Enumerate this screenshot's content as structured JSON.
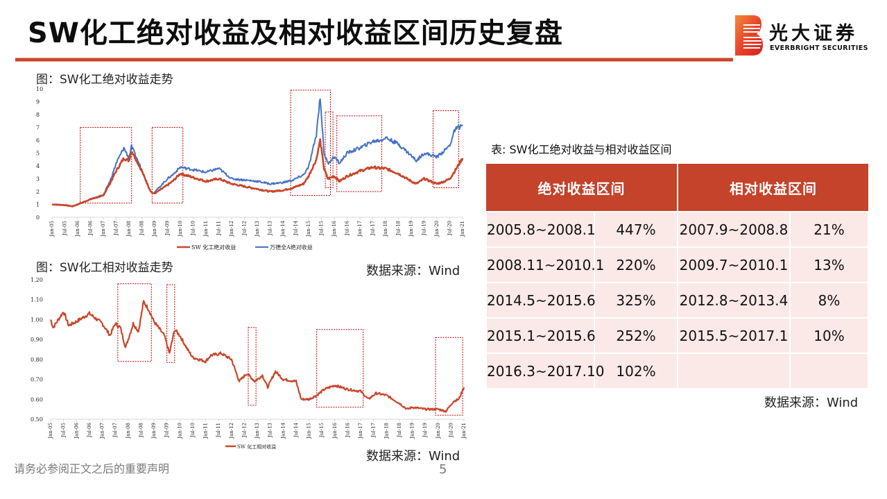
{
  "header": {
    "title": "SW化工绝对收益及相对收益区间历史复盘",
    "logo_cn": "光大证券",
    "logo_en": "EVERBRIGHT SECURITIES"
  },
  "colors": {
    "accent": "#c4432a",
    "sw_line": "#c9462a",
    "wind_line": "#4472c4",
    "box": "#c00000",
    "table_header_bg": "#c4432a",
    "table_cell_bg": "#fae9e6"
  },
  "figure1": {
    "caption": "图：SW化工绝对收益走势",
    "source": "数据来源：Wind"
  },
  "figure2": {
    "caption": "图：SW化工相对收益走势",
    "source": "数据来源：Wind"
  },
  "table": {
    "caption": "表: SW化工绝对收益与相对收益区间",
    "headers": [
      "绝对收益区间",
      "相对收益区间"
    ],
    "rows": [
      {
        "abs_range": "2005.8~2008.1",
        "abs_return": "447%",
        "rel_range": "2007.9~2008.8",
        "rel_return": "21%"
      },
      {
        "abs_range": "2008.11~2010.1",
        "abs_return": "220%",
        "rel_range": "2009.7~2010.1",
        "rel_return": "13%"
      },
      {
        "abs_range": "2014.5~2015.6",
        "abs_return": "325%",
        "rel_range": "2012.8~2013.4",
        "rel_return": "8%"
      },
      {
        "abs_range": "2015.1~2015.6",
        "abs_return": "252%",
        "rel_range": "2015.5~2017.1",
        "rel_return": "10%"
      },
      {
        "abs_range": "2016.3~2017.10",
        "abs_return": "102%",
        "rel_range": "",
        "rel_return": ""
      }
    ],
    "source": "数据来源：Wind"
  },
  "footer": {
    "disclaimer": "请务必参阅正文之后的重要声明",
    "page_number": "5"
  },
  "chart_data": [
    {
      "type": "line",
      "title": "SW化工绝对收益走势",
      "xlabel": "",
      "ylabel": "",
      "ylim": [
        0,
        10
      ],
      "yticks": [
        "0",
        "1",
        "2",
        "3",
        "4",
        "5",
        "6",
        "7",
        "8",
        "9",
        "10"
      ],
      "x_tick_labels": [
        "Jan-05",
        "Jul-05",
        "Jan-06",
        "Jul-06",
        "Jan-07",
        "Jul-07",
        "Jan-08",
        "Jul-08",
        "Jan-09",
        "Jul-09",
        "Jan-10",
        "Jul-10",
        "Jan-11",
        "Jul-11",
        "Jan-12",
        "Jul-12",
        "Jan-13",
        "Jul-13",
        "Jan-14",
        "Jul-14",
        "Jan-15",
        "Jul-15",
        "Jan-16",
        "Jul-16",
        "Jan-17",
        "Jul-17",
        "Jan-18",
        "Jul-18",
        "Jan-19",
        "Jul-19",
        "Jan-20",
        "Jul-20",
        "Jan-21"
      ],
      "legend_position": "bottom",
      "grid": false,
      "x": [
        2005.0,
        2005.5,
        2005.8,
        2006.0,
        2006.5,
        2007.0,
        2007.3,
        2007.5,
        2007.8,
        2008.0,
        2008.1,
        2008.5,
        2008.8,
        2008.9,
        2009.0,
        2009.5,
        2009.7,
        2010.0,
        2010.5,
        2011.0,
        2011.5,
        2012.0,
        2012.5,
        2013.0,
        2013.5,
        2014.0,
        2014.4,
        2014.8,
        2015.0,
        2015.3,
        2015.45,
        2015.6,
        2015.75,
        2016.0,
        2016.2,
        2016.5,
        2017.0,
        2017.5,
        2017.8,
        2018.0,
        2018.5,
        2019.0,
        2019.2,
        2019.5,
        2020.0,
        2020.3,
        2020.5,
        2020.7,
        2021.0
      ],
      "series": [
        {
          "name": "SW 化工绝对收益",
          "color": "#c9462a",
          "values": [
            1.0,
            0.95,
            0.85,
            1.0,
            1.4,
            1.7,
            2.8,
            3.6,
            4.6,
            4.4,
            5.2,
            3.6,
            2.2,
            1.9,
            1.85,
            2.5,
            2.8,
            3.4,
            3.1,
            2.8,
            3.0,
            2.6,
            2.4,
            2.2,
            2.0,
            2.1,
            2.3,
            2.6,
            3.2,
            4.5,
            6.0,
            3.8,
            3.0,
            3.2,
            2.8,
            3.2,
            3.6,
            3.9,
            3.8,
            3.8,
            3.4,
            2.8,
            2.6,
            3.0,
            2.6,
            2.8,
            3.0,
            3.6,
            4.6
          ]
        },
        {
          "name": "万德全A绝对收益",
          "color": "#4472c4",
          "values": [
            1.0,
            0.95,
            0.85,
            1.0,
            1.4,
            1.7,
            3.0,
            4.2,
            5.4,
            4.6,
            5.5,
            3.7,
            2.2,
            1.9,
            1.95,
            3.0,
            3.3,
            3.9,
            3.7,
            3.5,
            3.8,
            3.0,
            2.9,
            2.8,
            2.6,
            2.7,
            2.9,
            3.3,
            3.9,
            6.4,
            9.4,
            5.0,
            4.2,
            4.7,
            4.2,
            5.0,
            5.4,
            5.9,
            6.0,
            6.2,
            5.7,
            4.8,
            4.4,
            5.0,
            4.7,
            5.2,
            5.6,
            6.8,
            7.2
          ]
        }
      ],
      "highlight_boxes": [
        {
          "x_start": 2006.1,
          "x_end": 2008.1,
          "y_low": 1.1,
          "y_high": 7.0
        },
        {
          "x_start": 2008.9,
          "x_end": 2010.1,
          "y_low": 1.1,
          "y_high": 7.0
        },
        {
          "x_start": 2014.3,
          "x_end": 2015.85,
          "y_low": 1.7,
          "y_high": 9.9
        },
        {
          "x_start": 2015.65,
          "x_end": 2015.95,
          "y_low": 2.3,
          "y_high": 8.2
        },
        {
          "x_start": 2016.1,
          "x_end": 2017.85,
          "y_low": 2.0,
          "y_high": 7.9
        },
        {
          "x_start": 2019.85,
          "x_end": 2020.85,
          "y_low": 2.3,
          "y_high": 8.3
        }
      ]
    },
    {
      "type": "line",
      "title": "SW化工相对收益走势",
      "xlabel": "",
      "ylabel": "",
      "ylim": [
        0.5,
        1.2
      ],
      "yticks": [
        "0.50",
        "0.60",
        "0.70",
        "0.80",
        "0.90",
        "1.00",
        "1.10",
        "1.20"
      ],
      "x_tick_labels": [
        "Jan-05",
        "Jul-05",
        "Jan-06",
        "Jul-06",
        "Jan-07",
        "Jul-07",
        "Jan-08",
        "Jul-08",
        "Jan-09",
        "Jul-09",
        "Jan-10",
        "Jul-10",
        "Jan-11",
        "Jul-11",
        "Jan-12",
        "Jul-12",
        "Jan-13",
        "Jul-13",
        "Jan-14",
        "Jul-14",
        "Jan-15",
        "Jul-15",
        "Jan-16",
        "Jul-16",
        "Jan-17",
        "Jul-17",
        "Jan-18",
        "Jul-18",
        "Jan-19",
        "Jul-19",
        "Jan-20",
        "Jul-20",
        "Jan-21"
      ],
      "legend_position": "bottom",
      "grid": false,
      "x": [
        2005.0,
        2005.1,
        2005.5,
        2005.7,
        2006.0,
        2006.5,
        2007.0,
        2007.3,
        2007.5,
        2007.7,
        2007.9,
        2008.2,
        2008.4,
        2008.6,
        2008.8,
        2009.0,
        2009.4,
        2009.6,
        2009.8,
        2010.0,
        2010.3,
        2010.5,
        2011.0,
        2011.2,
        2011.6,
        2012.0,
        2012.3,
        2012.6,
        2012.9,
        2013.2,
        2013.4,
        2013.7,
        2014.0,
        2014.5,
        2014.7,
        2015.0,
        2015.3,
        2015.6,
        2016.0,
        2016.5,
        2017.0,
        2017.3,
        2017.6,
        2018.0,
        2018.5,
        2018.8,
        2019.0,
        2019.5,
        2020.0,
        2020.3,
        2020.6,
        2020.8,
        2021.0
      ],
      "series": [
        {
          "name": "SW 化工相对收益",
          "color": "#c9462a",
          "values": [
            1.0,
            0.96,
            1.04,
            0.97,
            0.99,
            1.03,
            0.98,
            0.92,
            0.98,
            0.96,
            0.86,
            0.98,
            0.94,
            1.09,
            1.05,
            0.99,
            0.92,
            0.83,
            0.95,
            0.92,
            0.85,
            0.81,
            0.79,
            0.82,
            0.83,
            0.8,
            0.69,
            0.73,
            0.69,
            0.72,
            0.66,
            0.74,
            0.7,
            0.69,
            0.6,
            0.6,
            0.62,
            0.65,
            0.67,
            0.65,
            0.64,
            0.6,
            0.63,
            0.62,
            0.58,
            0.55,
            0.56,
            0.55,
            0.55,
            0.54,
            0.59,
            0.6,
            0.66
          ]
        }
      ],
      "highlight_boxes": [
        {
          "x_start": 2007.6,
          "x_end": 2008.9,
          "y_low": 0.79,
          "y_high": 1.18
        },
        {
          "x_start": 2009.5,
          "x_end": 2009.8,
          "y_low": 0.785,
          "y_high": 1.175
        },
        {
          "x_start": 2012.65,
          "x_end": 2012.95,
          "y_low": 0.57,
          "y_high": 0.96
        },
        {
          "x_start": 2015.3,
          "x_end": 2017.1,
          "y_low": 0.56,
          "y_high": 0.95
        },
        {
          "x_start": 2019.9,
          "x_end": 2020.95,
          "y_low": 0.52,
          "y_high": 0.91
        }
      ]
    }
  ]
}
